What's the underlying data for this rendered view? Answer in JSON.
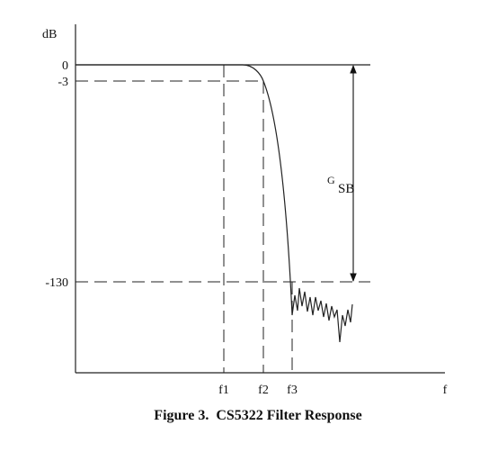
{
  "axis": {
    "y_label": "dB",
    "x_label": "f"
  },
  "levels": [
    "0",
    "-3",
    "-130"
  ],
  "frequencies": [
    "f1",
    "f2",
    "f3"
  ],
  "gain_label": {
    "main": "G",
    "subscript": "SB"
  },
  "caption": "Figure 3.  CS5322 Filter Response"
}
